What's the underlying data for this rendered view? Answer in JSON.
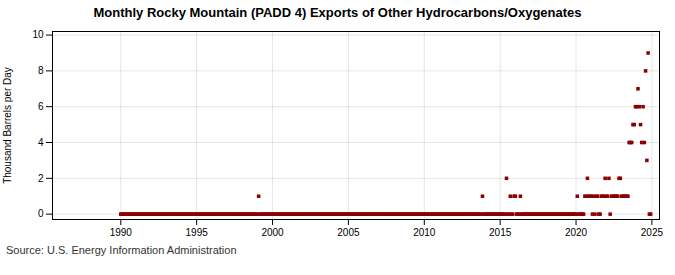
{
  "chart_data": {
    "type": "scatter",
    "title": "Monthly Rocky Mountain (PADD 4) Exports of Other Hydrocarbons/Oxygenates",
    "ylabel": "Thousand Barrels per Day",
    "caption": "Source: U.S. Energy Information Administration",
    "color": "#8b0000",
    "marker": "square",
    "grid": true,
    "xlim": [
      1985.5,
      2025.5
    ],
    "xticks": [
      1990,
      1995,
      2000,
      2005,
      2010,
      2015,
      2020,
      2025
    ],
    "ylim": [
      -0.3,
      10.2
    ],
    "yticks": [
      0,
      2,
      4,
      6,
      8,
      10
    ],
    "x": [
      1990.0,
      1990.083,
      1990.167,
      1990.25,
      1990.333,
      1990.417,
      1990.5,
      1990.583,
      1990.667,
      1990.75,
      1990.833,
      1990.917,
      1991.0,
      1991.083,
      1991.167,
      1991.25,
      1991.333,
      1991.417,
      1991.5,
      1991.583,
      1991.667,
      1991.75,
      1991.833,
      1991.917,
      1992.0,
      1992.083,
      1992.167,
      1992.25,
      1992.333,
      1992.417,
      1992.5,
      1992.583,
      1992.667,
      1992.75,
      1992.833,
      1992.917,
      1993.0,
      1993.083,
      1993.167,
      1993.25,
      1993.333,
      1993.417,
      1993.5,
      1993.583,
      1993.667,
      1993.75,
      1993.833,
      1993.917,
      1994.0,
      1994.083,
      1994.167,
      1994.25,
      1994.333,
      1994.417,
      1994.5,
      1994.583,
      1994.667,
      1994.75,
      1994.833,
      1994.917,
      1995.0,
      1995.083,
      1995.167,
      1995.25,
      1995.333,
      1995.417,
      1995.5,
      1995.583,
      1995.667,
      1995.75,
      1995.833,
      1995.917,
      1996.0,
      1996.083,
      1996.167,
      1996.25,
      1996.333,
      1996.417,
      1996.5,
      1996.583,
      1996.667,
      1996.75,
      1996.833,
      1996.917,
      1997.0,
      1997.083,
      1997.167,
      1997.25,
      1997.333,
      1997.417,
      1997.5,
      1997.583,
      1997.667,
      1997.75,
      1997.833,
      1997.917,
      1998.0,
      1998.083,
      1998.167,
      1998.25,
      1998.333,
      1998.417,
      1998.5,
      1998.583,
      1998.667,
      1998.75,
      1998.833,
      1998.917,
      1999.0,
      1999.083,
      1999.167,
      1999.25,
      1999.333,
      1999.417,
      1999.5,
      1999.583,
      1999.667,
      1999.75,
      1999.833,
      1999.917,
      2000.0,
      2000.083,
      2000.167,
      2000.25,
      2000.333,
      2000.417,
      2000.5,
      2000.583,
      2000.667,
      2000.75,
      2000.833,
      2000.917,
      2001.0,
      2001.083,
      2001.167,
      2001.25,
      2001.333,
      2001.417,
      2001.5,
      2001.583,
      2001.667,
      2001.75,
      2001.833,
      2001.917,
      2002.0,
      2002.083,
      2002.167,
      2002.25,
      2002.333,
      2002.417,
      2002.5,
      2002.583,
      2002.667,
      2002.75,
      2002.833,
      2002.917,
      2003.0,
      2003.083,
      2003.167,
      2003.25,
      2003.333,
      2003.417,
      2003.5,
      2003.583,
      2003.667,
      2003.75,
      2003.833,
      2003.917,
      2004.0,
      2004.083,
      2004.167,
      2004.25,
      2004.333,
      2004.417,
      2004.5,
      2004.583,
      2004.667,
      2004.75,
      2004.833,
      2004.917,
      2005.0,
      2005.083,
      2005.167,
      2005.25,
      2005.333,
      2005.417,
      2005.5,
      2005.583,
      2005.667,
      2005.75,
      2005.833,
      2005.917,
      2006.0,
      2006.083,
      2006.167,
      2006.25,
      2006.333,
      2006.417,
      2006.5,
      2006.583,
      2006.667,
      2006.75,
      2006.833,
      2006.917,
      2007.0,
      2007.083,
      2007.167,
      2007.25,
      2007.333,
      2007.417,
      2007.5,
      2007.583,
      2007.667,
      2007.75,
      2007.833,
      2007.917,
      2008.0,
      2008.083,
      2008.167,
      2008.25,
      2008.333,
      2008.417,
      2008.5,
      2008.583,
      2008.667,
      2008.75,
      2008.833,
      2008.917,
      2009.0,
      2009.083,
      2009.167,
      2009.25,
      2009.333,
      2009.417,
      2009.5,
      2009.583,
      2009.667,
      2009.75,
      2009.833,
      2009.917,
      2010.0,
      2010.083,
      2010.167,
      2010.25,
      2010.333,
      2010.417,
      2010.5,
      2010.583,
      2010.667,
      2010.75,
      2010.833,
      2010.917,
      2011.0,
      2011.083,
      2011.167,
      2011.25,
      2011.333,
      2011.417,
      2011.5,
      2011.583,
      2011.667,
      2011.75,
      2011.833,
      2011.917,
      2012.0,
      2012.083,
      2012.167,
      2012.25,
      2012.333,
      2012.417,
      2012.5,
      2012.583,
      2012.667,
      2012.75,
      2012.833,
      2012.917,
      2013.0,
      2013.083,
      2013.167,
      2013.25,
      2013.333,
      2013.417,
      2013.5,
      2013.583,
      2013.667,
      2013.75,
      2013.833,
      2013.917,
      2014.0,
      2014.083,
      2014.167,
      2014.25,
      2014.333,
      2014.417,
      2014.5,
      2014.583,
      2014.667,
      2014.75,
      2014.833,
      2014.917,
      2015.0,
      2015.083,
      2015.167,
      2015.25,
      2015.333,
      2015.417,
      2015.5,
      2015.583,
      2015.667,
      2015.75,
      2015.833,
      2015.917,
      2016.0,
      2016.083,
      2016.167,
      2016.25,
      2016.333,
      2016.417,
      2016.5,
      2016.583,
      2016.667,
      2016.75,
      2016.833,
      2016.917,
      2017.0,
      2017.083,
      2017.167,
      2017.25,
      2017.333,
      2017.417,
      2017.5,
      2017.583,
      2017.667,
      2017.75,
      2017.833,
      2017.917,
      2018.0,
      2018.083,
      2018.167,
      2018.25,
      2018.333,
      2018.417,
      2018.5,
      2018.583,
      2018.667,
      2018.75,
      2018.833,
      2018.917,
      2019.0,
      2019.083,
      2019.167,
      2019.25,
      2019.333,
      2019.417,
      2019.5,
      2019.583,
      2019.667,
      2019.75,
      2019.833,
      2019.917,
      2020.0,
      2020.083,
      2020.167,
      2020.25,
      2020.333,
      2020.417,
      2020.5,
      2020.583,
      2020.667,
      2020.75,
      2020.833,
      2020.917,
      2021.0,
      2021.083,
      2021.167,
      2021.25,
      2021.333,
      2021.417,
      2021.5,
      2021.583,
      2021.667,
      2021.75,
      2021.833,
      2021.917,
      2022.0,
      2022.083,
      2022.167,
      2022.25,
      2022.333,
      2022.417,
      2022.5,
      2022.583,
      2022.667,
      2022.75,
      2022.833,
      2022.917,
      2023.0,
      2023.083,
      2023.167,
      2023.25,
      2023.333,
      2023.417,
      2023.5,
      2023.583,
      2023.667,
      2023.75,
      2023.833,
      2023.917,
      2024.0,
      2024.083,
      2024.167,
      2024.25,
      2024.333,
      2024.417,
      2024.5,
      2024.583,
      2024.667,
      2024.75,
      2024.833,
      2024.917
    ],
    "values": [
      0,
      0,
      0,
      0,
      0,
      0,
      0,
      0,
      0,
      0,
      0,
      0,
      0,
      0,
      0,
      0,
      0,
      0,
      0,
      0,
      0,
      0,
      0,
      0,
      0,
      0,
      0,
      0,
      0,
      0,
      0,
      0,
      0,
      0,
      0,
      0,
      0,
      0,
      0,
      0,
      0,
      0,
      0,
      0,
      0,
      0,
      0,
      0,
      0,
      0,
      0,
      0,
      0,
      0,
      0,
      0,
      0,
      0,
      0,
      0,
      0,
      0,
      0,
      0,
      0,
      0,
      0,
      0,
      0,
      0,
      0,
      0,
      0,
      0,
      0,
      0,
      0,
      0,
      0,
      0,
      0,
      0,
      0,
      0,
      0,
      0,
      0,
      0,
      0,
      0,
      0,
      0,
      0,
      0,
      0,
      0,
      0,
      0,
      0,
      0,
      0,
      0,
      0,
      0,
      0,
      0,
      0,
      0,
      0,
      1,
      0,
      0,
      0,
      0,
      0,
      0,
      0,
      0,
      0,
      0,
      0,
      0,
      0,
      0,
      0,
      0,
      0,
      0,
      0,
      0,
      0,
      0,
      0,
      0,
      0,
      0,
      0,
      0,
      0,
      0,
      0,
      0,
      0,
      0,
      0,
      0,
      0,
      0,
      0,
      0,
      0,
      0,
      0,
      0,
      0,
      0,
      0,
      0,
      0,
      0,
      0,
      0,
      0,
      0,
      0,
      0,
      0,
      0,
      0,
      0,
      0,
      0,
      0,
      0,
      0,
      0,
      0,
      0,
      0,
      0,
      0,
      0,
      0,
      0,
      0,
      0,
      0,
      0,
      0,
      0,
      0,
      0,
      0,
      0,
      0,
      0,
      0,
      0,
      0,
      0,
      0,
      0,
      0,
      0,
      0,
      0,
      0,
      0,
      0,
      0,
      0,
      0,
      0,
      0,
      0,
      0,
      0,
      0,
      0,
      0,
      0,
      0,
      0,
      0,
      0,
      0,
      0,
      0,
      0,
      0,
      0,
      0,
      0,
      0,
      0,
      0,
      0,
      0,
      0,
      0,
      0,
      0,
      0,
      0,
      0,
      0,
      0,
      0,
      0,
      0,
      0,
      0,
      0,
      0,
      0,
      0,
      0,
      0,
      0,
      0,
      0,
      0,
      0,
      0,
      0,
      0,
      0,
      0,
      0,
      0,
      0,
      0,
      0,
      0,
      0,
      0,
      0,
      0,
      0,
      0,
      0,
      0,
      0,
      0,
      0,
      0,
      1,
      0,
      0,
      0,
      0,
      0,
      0,
      0,
      0,
      0,
      0,
      0,
      0,
      0,
      0,
      0,
      0,
      0,
      0,
      2,
      0,
      0,
      1,
      0,
      0,
      1,
      1,
      0,
      0,
      0,
      1,
      0,
      0,
      0,
      0,
      0,
      0,
      0,
      0,
      0,
      0,
      0,
      0,
      0,
      0,
      0,
      0,
      0,
      0,
      0,
      0,
      0,
      0,
      0,
      0,
      0,
      0,
      0,
      0,
      0,
      0,
      0,
      0,
      0,
      0,
      0,
      0,
      0,
      0,
      0,
      0,
      0,
      0,
      0,
      0,
      1,
      0,
      0,
      0,
      0,
      0,
      1,
      1,
      2,
      1,
      1,
      1,
      0,
      1,
      0,
      1,
      1,
      0,
      0,
      1,
      1,
      1,
      2,
      1,
      1,
      2,
      0,
      1,
      1,
      1,
      1,
      1,
      1,
      2,
      2,
      1,
      1,
      1,
      1,
      1,
      1,
      4,
      4,
      4,
      5,
      5,
      6,
      6,
      7,
      6,
      5,
      4,
      6,
      4,
      8,
      3,
      9,
      0,
      0
    ]
  }
}
